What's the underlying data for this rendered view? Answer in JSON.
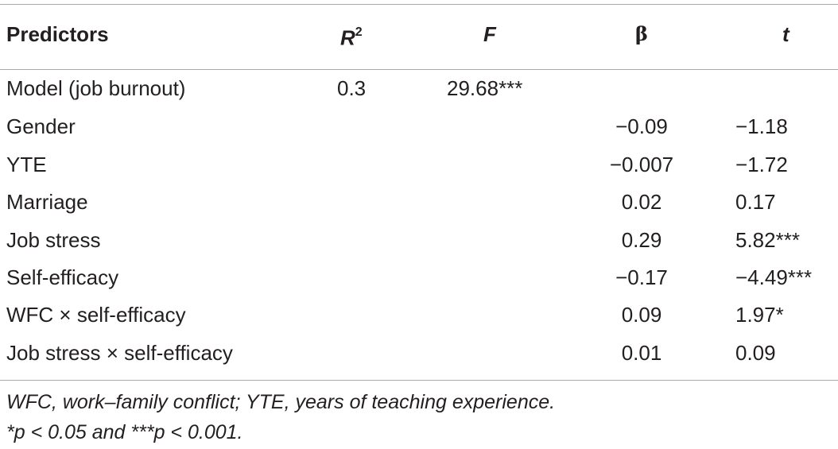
{
  "table": {
    "headers": {
      "predictors": "Predictors",
      "r2_letter": "R",
      "r2_exp": "2",
      "f": "F",
      "beta": "β",
      "t": "t"
    },
    "rows": [
      {
        "predictor": "Model (job burnout)",
        "r2": "0.3",
        "f": "29.68***",
        "beta": "",
        "t": ""
      },
      {
        "predictor": "Gender",
        "r2": "",
        "f": "",
        "beta": "−0.09",
        "t": "−1.18"
      },
      {
        "predictor": "YTE",
        "r2": "",
        "f": "",
        "beta": "−0.007",
        "t": "−1.72"
      },
      {
        "predictor": "Marriage",
        "r2": "",
        "f": "",
        "beta": "0.02",
        "t": "0.17"
      },
      {
        "predictor": "Job stress",
        "r2": "",
        "f": "",
        "beta": "0.29",
        "t": "5.82***"
      },
      {
        "predictor": "Self-efficacy",
        "r2": "",
        "f": "",
        "beta": "−0.17",
        "t": "−4.49***"
      },
      {
        "predictor": "WFC × self-efficacy",
        "r2": "",
        "f": "",
        "beta": "0.09",
        "t": "1.97*"
      },
      {
        "predictor": "Job stress × self-efficacy",
        "r2": "",
        "f": "",
        "beta": "0.01",
        "t": "0.09"
      }
    ]
  },
  "notes": {
    "abbreviations": "WFC, work–family conflict; YTE, years of teaching experience.",
    "significance": "*p < 0.05 and ***p < 0.001."
  }
}
